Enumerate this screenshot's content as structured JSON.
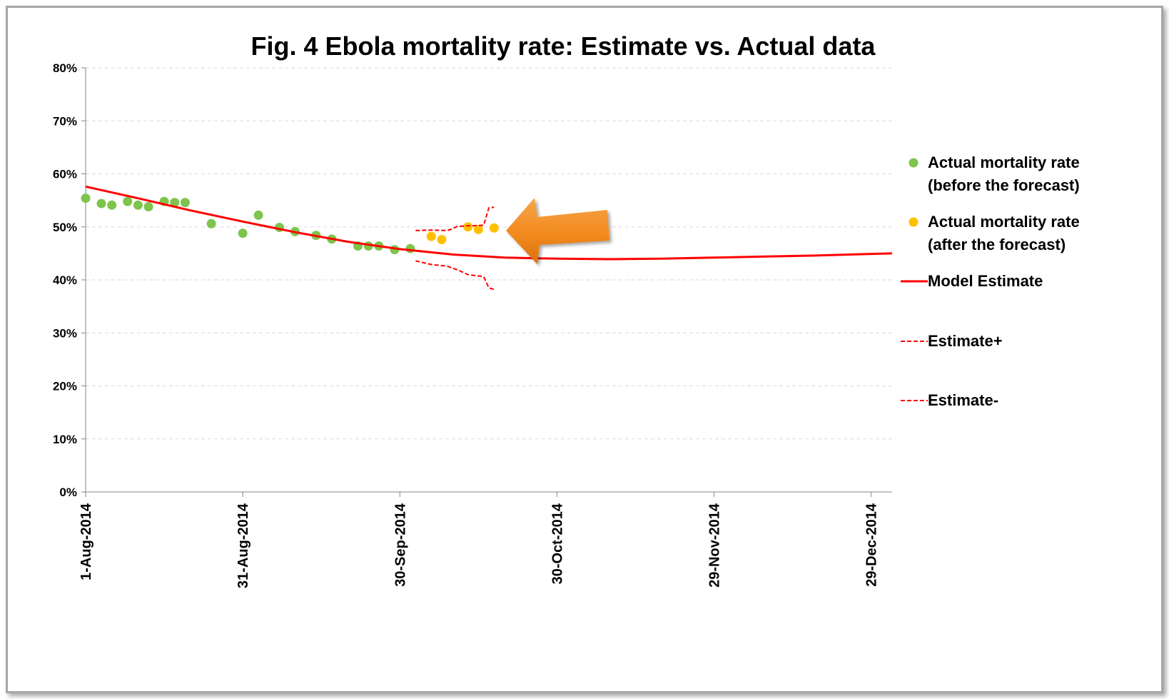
{
  "chart_data": {
    "type": "scatter",
    "title": "Fig. 4 Ebola mortality rate: Estimate vs. Actual data",
    "xlabel": "",
    "ylabel": "",
    "x_axis_type": "date",
    "xlim": [
      "2014-08-01",
      "2015-01-02"
    ],
    "ylim": [
      0,
      0.8
    ],
    "y_tick_values": [
      0,
      0.1,
      0.2,
      0.3,
      0.4,
      0.5,
      0.6,
      0.7,
      0.8
    ],
    "y_tick_labels": [
      "0%",
      "10%",
      "20%",
      "30%",
      "40%",
      "50%",
      "60%",
      "70%",
      "80%"
    ],
    "x_tick_values": [
      "2014-08-01",
      "2014-08-31",
      "2014-09-30",
      "2014-10-30",
      "2014-11-29",
      "2014-12-29"
    ],
    "x_tick_labels": [
      "1-Aug-2014",
      "31-Aug-2014",
      "30-Sep-2014",
      "30-Oct-2014",
      "29-Nov-2014",
      "29-Dec-2014"
    ],
    "grid": "horizontal-dashed",
    "legend_position": "right",
    "series": [
      {
        "name": "Actual  mortality rate (before the forecast)",
        "name_lines": [
          "Actual  mortality rate",
          "(before the forecast)"
        ],
        "kind": "scatter",
        "color": "#7ec44d",
        "x": [
          "2014-08-01",
          "2014-08-04",
          "2014-08-06",
          "2014-08-09",
          "2014-08-11",
          "2014-08-13",
          "2014-08-16",
          "2014-08-18",
          "2014-08-20",
          "2014-08-25",
          "2014-08-31",
          "2014-09-03",
          "2014-09-07",
          "2014-09-10",
          "2014-09-14",
          "2014-09-17",
          "2014-09-22",
          "2014-09-24",
          "2014-09-26",
          "2014-09-29",
          "2014-10-02"
        ],
        "y": [
          0.554,
          0.544,
          0.541,
          0.548,
          0.541,
          0.538,
          0.548,
          0.546,
          0.546,
          0.506,
          0.488,
          0.522,
          0.499,
          0.491,
          0.484,
          0.477,
          0.464,
          0.464,
          0.464,
          0.457,
          0.459
        ]
      },
      {
        "name": "Actual mortality rate (after the forecast)",
        "name_lines": [
          "Actual mortality rate",
          "(after the forecast)"
        ],
        "kind": "scatter",
        "color": "#ffc000",
        "x": [
          "2014-10-06",
          "2014-10-08",
          "2014-10-13",
          "2014-10-15",
          "2014-10-18"
        ],
        "y": [
          0.482,
          0.476,
          0.5,
          0.495,
          0.498
        ]
      },
      {
        "name": "Model Estimate",
        "kind": "line",
        "color": "#ff0000",
        "x": [
          "2014-08-01",
          "2014-08-11",
          "2014-08-21",
          "2014-08-31",
          "2014-09-10",
          "2014-09-20",
          "2014-09-30",
          "2014-10-10",
          "2014-10-20",
          "2014-10-30",
          "2014-11-09",
          "2014-11-19",
          "2014-11-29",
          "2014-12-09",
          "2014-12-19",
          "2014-12-29",
          "2015-01-02"
        ],
        "y": [
          0.576,
          0.554,
          0.531,
          0.51,
          0.49,
          0.472,
          0.458,
          0.448,
          0.442,
          0.44,
          0.439,
          0.44,
          0.442,
          0.444,
          0.446,
          0.449,
          0.45
        ]
      },
      {
        "name": "Estimate+",
        "kind": "dashed-line",
        "color": "#ff0000",
        "x": [
          "2014-10-03",
          "2014-10-06",
          "2014-10-09",
          "2014-10-10",
          "2014-10-11",
          "2014-10-13",
          "2014-10-16",
          "2014-10-17",
          "2014-10-18"
        ],
        "y": [
          0.493,
          0.494,
          0.493,
          0.496,
          0.501,
          0.502,
          0.503,
          0.536,
          0.537
        ]
      },
      {
        "name": "Estimate-",
        "kind": "dashed-line",
        "color": "#ff0000",
        "x": [
          "2014-10-03",
          "2014-10-06",
          "2014-10-09",
          "2014-10-11",
          "2014-10-13",
          "2014-10-16",
          "2014-10-17",
          "2014-10-18"
        ],
        "y": [
          0.436,
          0.429,
          0.426,
          0.419,
          0.41,
          0.406,
          0.385,
          0.382
        ]
      }
    ],
    "annotations": [
      {
        "kind": "arrow",
        "color": "#f28a1e",
        "direction": "left",
        "points_to_series": "Actual mortality rate (after the forecast)"
      }
    ]
  }
}
